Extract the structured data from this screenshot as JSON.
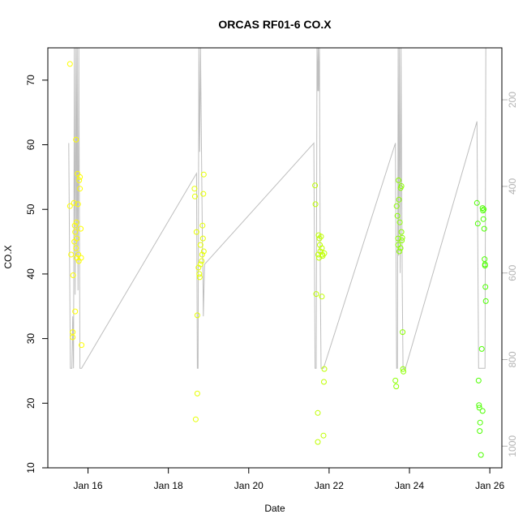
{
  "chart_data": {
    "type": "scatter",
    "title": "ORCAS RF01-6 CO.X",
    "xlabel": "Date",
    "ylabel": "CO.X",
    "xlim_days": [
      15.0,
      26.3
    ],
    "ylim": [
      10,
      75
    ],
    "x_ticks": [
      {
        "value": 16,
        "label": "Jan 16"
      },
      {
        "value": 18,
        "label": "Jan 18"
      },
      {
        "value": 20,
        "label": "Jan 20"
      },
      {
        "value": 22,
        "label": "Jan 22"
      },
      {
        "value": 24,
        "label": "Jan 24"
      },
      {
        "value": 26,
        "label": "Jan 26"
      }
    ],
    "y_ticks": [
      10,
      20,
      30,
      40,
      50,
      60,
      70
    ],
    "y2_range": [
      1050,
      80
    ],
    "y2_reversed": true,
    "y2_ticks": [
      200,
      400,
      600,
      800,
      1000
    ],
    "y2_color": "#b3b3b3",
    "altitude_line_color": "#bebebe",
    "grid": false,
    "series": [
      {
        "color": "#ffff00",
        "points": [
          [
            15.55,
            72.5
          ],
          [
            15.55,
            50.5
          ],
          [
            15.58,
            43
          ],
          [
            15.62,
            31
          ],
          [
            15.62,
            30.2
          ],
          [
            15.63,
            39.8
          ],
          [
            15.65,
            51
          ],
          [
            15.66,
            45
          ],
          [
            15.67,
            47.5
          ],
          [
            15.68,
            34.2
          ],
          [
            15.68,
            46.5
          ],
          [
            15.7,
            60.8
          ],
          [
            15.7,
            44
          ],
          [
            15.71,
            48
          ],
          [
            15.72,
            45.5
          ],
          [
            15.72,
            42.5
          ],
          [
            15.74,
            55.5
          ],
          [
            15.75,
            50.8
          ],
          [
            15.76,
            43
          ],
          [
            15.77,
            42
          ],
          [
            15.78,
            54.5
          ],
          [
            15.8,
            55
          ],
          [
            15.8,
            53.2
          ],
          [
            15.82,
            47
          ],
          [
            15.83,
            42.5
          ],
          [
            15.84,
            29
          ]
        ]
      },
      {
        "color": "#e6ff00",
        "points": [
          [
            18.65,
            53.2
          ],
          [
            18.66,
            52
          ],
          [
            18.68,
            17.5
          ],
          [
            18.7,
            46.5
          ],
          [
            18.72,
            21.5
          ],
          [
            18.72,
            33.6
          ],
          [
            18.75,
            41
          ],
          [
            18.77,
            40
          ],
          [
            18.78,
            39.5
          ],
          [
            18.8,
            41.5
          ],
          [
            18.8,
            44.5
          ],
          [
            18.83,
            42
          ],
          [
            18.84,
            43
          ],
          [
            18.85,
            47.5
          ],
          [
            18.86,
            45.5
          ],
          [
            18.87,
            52.4
          ],
          [
            18.88,
            55.4
          ],
          [
            18.88,
            43.5
          ]
        ]
      },
      {
        "color": "#bfff00",
        "points": [
          [
            21.65,
            53.7
          ],
          [
            21.66,
            50.8
          ],
          [
            21.68,
            36.9
          ],
          [
            21.72,
            18.5
          ],
          [
            21.72,
            14
          ],
          [
            21.73,
            43
          ],
          [
            21.74,
            46
          ],
          [
            21.75,
            42.5
          ],
          [
            21.76,
            45.5
          ],
          [
            21.77,
            44.5
          ],
          [
            21.78,
            43.5
          ],
          [
            21.8,
            45.8
          ],
          [
            21.82,
            36.5
          ],
          [
            21.82,
            44
          ],
          [
            21.83,
            43
          ],
          [
            21.84,
            42.8
          ],
          [
            21.86,
            15
          ],
          [
            21.87,
            23.3
          ],
          [
            21.88,
            25.3
          ],
          [
            21.88,
            43.2
          ]
        ]
      },
      {
        "color": "#8cff00",
        "points": [
          [
            23.65,
            23.5
          ],
          [
            23.67,
            22.6
          ],
          [
            23.68,
            50.5
          ],
          [
            23.7,
            49
          ],
          [
            23.72,
            44.5
          ],
          [
            23.72,
            45.5
          ],
          [
            23.73,
            54.5
          ],
          [
            23.74,
            51.5
          ],
          [
            23.75,
            43.5
          ],
          [
            23.76,
            48
          ],
          [
            23.78,
            53.3
          ],
          [
            23.78,
            44
          ],
          [
            23.8,
            53.6
          ],
          [
            23.8,
            46.5
          ],
          [
            23.81,
            45.2
          ],
          [
            23.82,
            45.6
          ],
          [
            23.83,
            31
          ],
          [
            23.84,
            25.3
          ],
          [
            23.85,
            24.9
          ]
        ]
      },
      {
        "color": "#4dff00",
        "points": [
          [
            25.68,
            51
          ],
          [
            25.7,
            47.8
          ],
          [
            25.72,
            23.5
          ],
          [
            25.73,
            19.7
          ],
          [
            25.74,
            19.3
          ],
          [
            25.75,
            15.7
          ],
          [
            25.76,
            17
          ],
          [
            25.78,
            12
          ],
          [
            25.8,
            28.4
          ],
          [
            25.82,
            18.8
          ],
          [
            25.82,
            50.2
          ],
          [
            25.83,
            49.8
          ],
          [
            25.84,
            48.5
          ],
          [
            25.85,
            50
          ],
          [
            25.86,
            47
          ],
          [
            25.87,
            42.3
          ],
          [
            25.88,
            41.5
          ],
          [
            25.88,
            41.3
          ],
          [
            25.89,
            38
          ],
          [
            25.9,
            35.8
          ]
        ]
      }
    ],
    "altitude_track": [
      [
        15.52,
        300
      ],
      [
        15.56,
        820
      ],
      [
        15.6,
        820
      ],
      [
        15.62,
        700
      ],
      [
        15.64,
        820
      ],
      [
        15.66,
        80
      ],
      [
        15.68,
        650
      ],
      [
        15.7,
        80
      ],
      [
        15.72,
        560
      ],
      [
        15.73,
        80
      ],
      [
        15.75,
        640
      ],
      [
        15.77,
        80
      ],
      [
        15.8,
        820
      ],
      [
        15.84,
        820
      ],
      [
        18.7,
        370
      ],
      [
        18.72,
        820
      ],
      [
        18.74,
        820
      ],
      [
        18.76,
        80
      ],
      [
        18.78,
        320
      ],
      [
        18.8,
        80
      ],
      [
        18.85,
        560
      ],
      [
        18.86,
        600
      ],
      [
        18.87,
        700
      ],
      [
        18.9,
        580
      ],
      [
        21.62,
        300
      ],
      [
        21.65,
        820
      ],
      [
        21.68,
        820
      ],
      [
        21.7,
        80
      ],
      [
        21.72,
        180
      ],
      [
        21.73,
        80
      ],
      [
        21.74,
        180
      ],
      [
        21.76,
        80
      ],
      [
        21.78,
        600
      ],
      [
        21.8,
        820
      ],
      [
        21.86,
        820
      ],
      [
        23.65,
        300
      ],
      [
        23.68,
        820
      ],
      [
        23.7,
        820
      ],
      [
        23.72,
        80
      ],
      [
        23.73,
        560
      ],
      [
        23.75,
        80
      ],
      [
        23.77,
        600
      ],
      [
        23.79,
        80
      ],
      [
        23.82,
        620
      ],
      [
        23.84,
        820
      ],
      [
        23.9,
        820
      ],
      [
        25.68,
        250
      ],
      [
        25.72,
        820
      ],
      [
        25.76,
        820
      ],
      [
        25.88,
        820
      ],
      [
        25.9,
        80
      ]
    ]
  }
}
